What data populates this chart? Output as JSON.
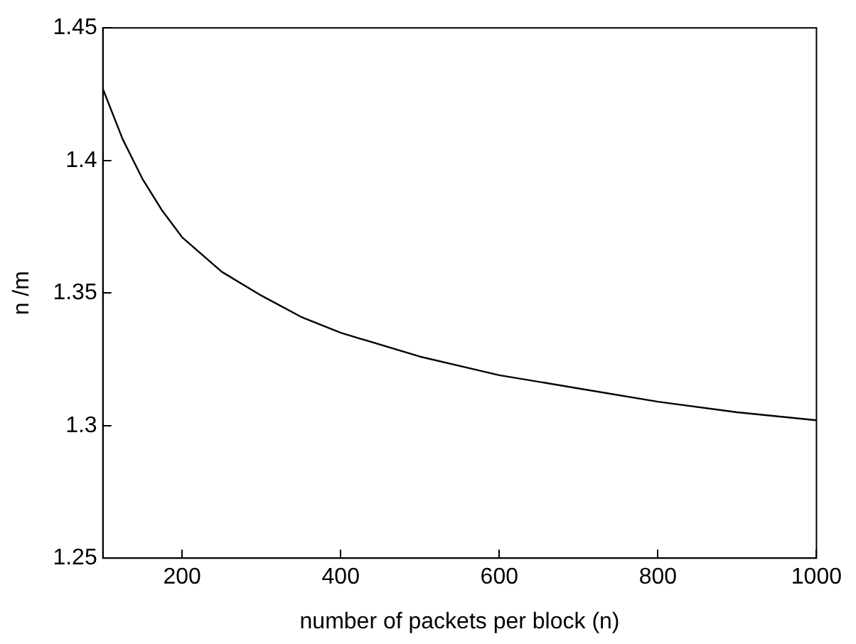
{
  "chart_data": {
    "type": "line",
    "xlabel": "number of packets per block (n)",
    "ylabel": "n /m",
    "x": [
      100,
      125,
      150,
      175,
      200,
      250,
      300,
      350,
      400,
      500,
      600,
      700,
      800,
      900,
      1000
    ],
    "series": [
      {
        "color": "#000000",
        "values": [
          1.427,
          1.408,
          1.393,
          1.381,
          1.371,
          1.358,
          1.349,
          1.341,
          1.335,
          1.326,
          1.319,
          1.314,
          1.309,
          1.305,
          1.302
        ]
      }
    ],
    "xlim": [
      100,
      1000
    ],
    "xticks": [
      200,
      400,
      600,
      800,
      1000
    ],
    "ylim": [
      1.25,
      1.45
    ],
    "yticks": [
      1.25,
      1.3,
      1.35,
      1.4,
      1.45
    ],
    "grid": false,
    "legend": false,
    "marker": "none",
    "line_style": "solid"
  }
}
